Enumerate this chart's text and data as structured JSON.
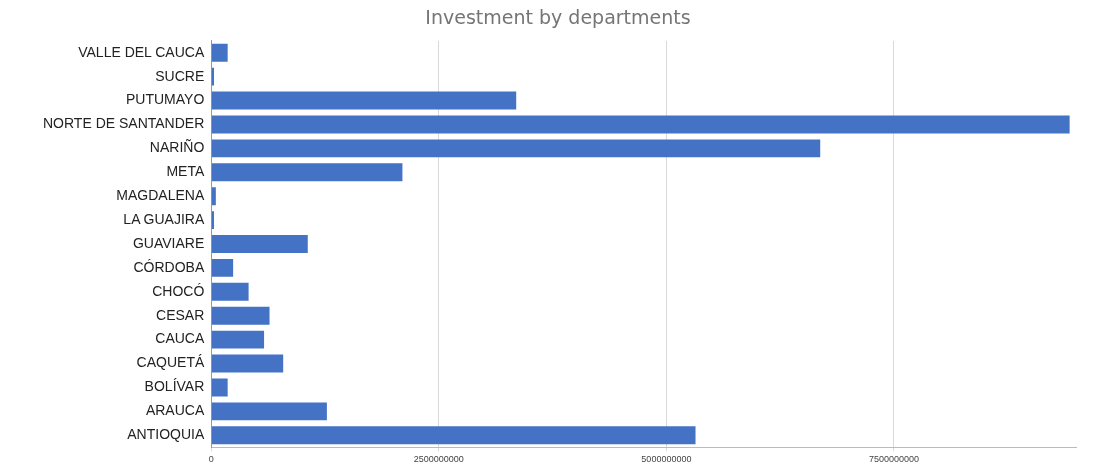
{
  "chart_data": {
    "type": "bar",
    "orientation": "horizontal",
    "title": "Investment by departments",
    "categories": [
      "VALLE DEL CAUCA",
      "SUCRE",
      "PUTUMAYO",
      "NORTE DE SANTANDER",
      "NARIÑO",
      "META",
      "MAGDALENA",
      "LA GUAJIRA",
      "GUAVIARE",
      "CÓRDOBA",
      "CHOCÓ",
      "CESAR",
      "CAUCA",
      "CAQUETÁ",
      "BOLÍVAR",
      "ARAUCA",
      "ANTIOQUIA"
    ],
    "values": [
      180000000,
      30000000,
      3350000000,
      9430000000,
      6690000000,
      2100000000,
      50000000,
      30000000,
      1060000000,
      240000000,
      410000000,
      640000000,
      580000000,
      790000000,
      180000000,
      1270000000,
      5320000000
    ],
    "color": "#4472c4",
    "xlim": [
      0,
      9500000000
    ],
    "xticks": [
      0,
      2500000000,
      5000000000,
      7500000000
    ],
    "grid": "x",
    "legend": false
  }
}
